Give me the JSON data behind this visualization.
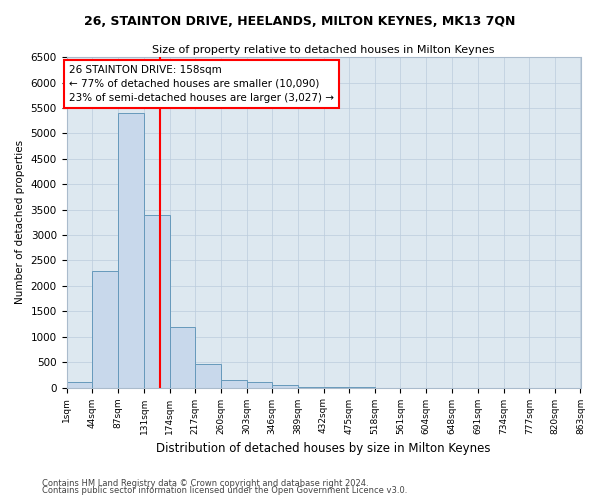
{
  "title1": "26, STAINTON DRIVE, HEELANDS, MILTON KEYNES, MK13 7QN",
  "title2": "Size of property relative to detached houses in Milton Keynes",
  "xlabel": "Distribution of detached houses by size in Milton Keynes",
  "ylabel": "Number of detached properties",
  "footnote1": "Contains HM Land Registry data © Crown copyright and database right 2024.",
  "footnote2": "Contains public sector information licensed under the Open Government Licence v3.0.",
  "bin_edges": [
    1,
    44,
    87,
    131,
    174,
    217,
    260,
    303,
    346,
    389,
    432,
    475,
    518,
    561,
    604,
    648,
    691,
    734,
    777,
    820,
    863
  ],
  "bar_heights": [
    100,
    2300,
    5400,
    3400,
    1200,
    460,
    150,
    100,
    50,
    20,
    8,
    3,
    1,
    0,
    0,
    0,
    0,
    0,
    0,
    0
  ],
  "bar_color": "#c8d8eb",
  "bar_edge_color": "#6699bb",
  "vline_x": 158,
  "vline_color": "red",
  "annotation_line1": "26 STAINTON DRIVE: 158sqm",
  "annotation_line2": "← 77% of detached houses are smaller (10,090)",
  "annotation_line3": "23% of semi-detached houses are larger (3,027) →",
  "ylim": [
    0,
    6500
  ],
  "yticks": [
    0,
    500,
    1000,
    1500,
    2000,
    2500,
    3000,
    3500,
    4000,
    4500,
    5000,
    5500,
    6000,
    6500
  ],
  "grid_color": "#bbccdd",
  "background_color": "#dde8f0"
}
